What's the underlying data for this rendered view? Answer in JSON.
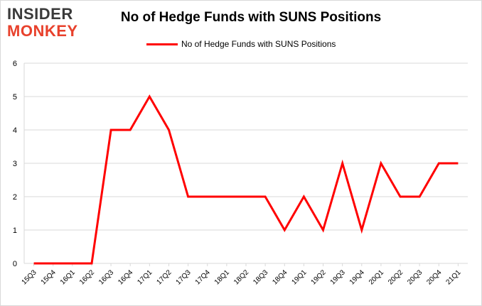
{
  "header": {
    "logo_line1": "INSIDER",
    "logo_line2": "MONKEY",
    "title": "No of Hedge Funds with SUNS Positions"
  },
  "colors": {
    "series": "#ff0000",
    "logo_dark": "#3a3a3a",
    "logo_red": "#e8412c",
    "grid": "#d9d9d9"
  },
  "chart_data": {
    "type": "line",
    "title": "No of Hedge Funds with SUNS Positions",
    "xlabel": "",
    "ylabel": "",
    "ylim": [
      0,
      6
    ],
    "yticks": [
      0,
      1,
      2,
      3,
      4,
      5,
      6
    ],
    "grid": true,
    "legend_position": "top-center",
    "categories": [
      "15Q3",
      "15Q4",
      "16Q1",
      "16Q2",
      "16Q3",
      "16Q4",
      "17Q1",
      "17Q2",
      "17Q3",
      "17Q4",
      "18Q1",
      "18Q2",
      "18Q3",
      "18Q4",
      "19Q1",
      "19Q2",
      "19Q3",
      "19Q4",
      "20Q1",
      "20Q2",
      "20Q3",
      "20Q4",
      "21Q1"
    ],
    "series": [
      {
        "name": "No of Hedge Funds with SUNS Positions",
        "values": [
          0,
          0,
          0,
          0,
          4,
          4,
          5,
          4,
          2,
          2,
          2,
          2,
          2,
          1,
          2,
          1,
          3,
          1,
          3,
          2,
          2,
          3,
          3
        ]
      }
    ]
  }
}
